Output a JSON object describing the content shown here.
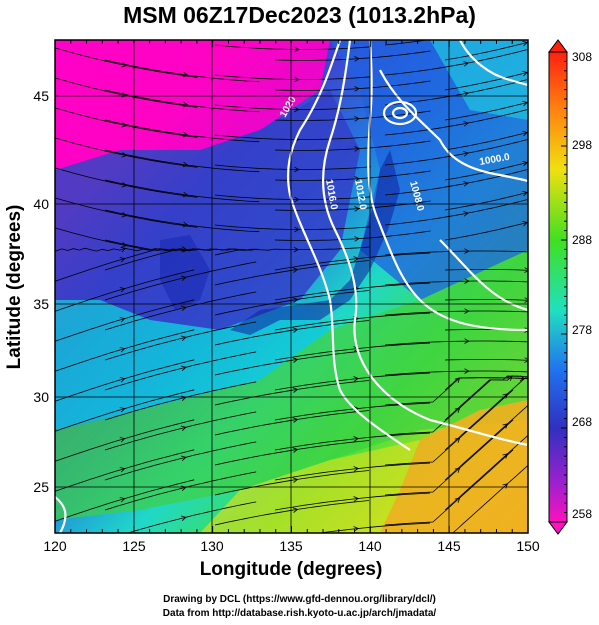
{
  "title": "MSM 06Z17Dec2023 (1013.2hPa)",
  "xlabel": "Longitude (degrees)",
  "ylabel": "Latitude  (degrees)",
  "x_ticks": [
    "120",
    "125",
    "130",
    "135",
    "140",
    "145",
    "150"
  ],
  "y_ticks": [
    "25",
    "30",
    "35",
    "40",
    "45"
  ],
  "colorbar_ticks": [
    "308",
    "298",
    "288",
    "278",
    "268",
    "258"
  ],
  "contour_labels": [
    "1020",
    "1016.0",
    "1012.0",
    "1008.0",
    "1000.0"
  ],
  "credits": {
    "line1": "Drawing by DCL (https://www.gfd-dennou.org/library/dcl/)",
    "line2": "Data from http://database.rish.kyoto-u.ac.jp/arch/jmadata/"
  },
  "colors": {
    "cold": "#ff00c8",
    "cool": "#2c3cc8",
    "mid": "#00d8d8",
    "warm": "#40e020",
    "hot": "#f0a020",
    "contour": "#ffffff"
  }
}
